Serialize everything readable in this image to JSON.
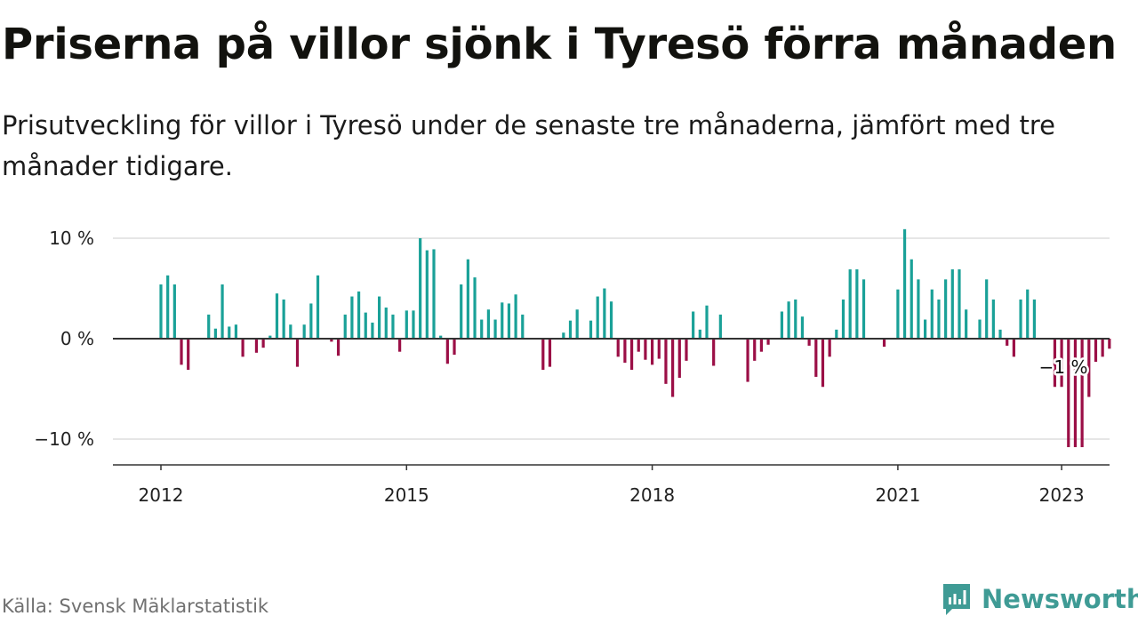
{
  "title": "Priserna på villor sjönk i Tyresö förra månaden",
  "subtitle": "Prisutveckling för villor i Tyresö under de senaste tre månaderna, jämfört med tre månader tidigare.",
  "source": "Källa: Svensk Mäklarstatistik",
  "brand": {
    "name": "Newsworthy",
    "logo_icon": "newsworthy-chart-icon",
    "color": "#3f9b95"
  },
  "colors": {
    "positive": "#1aa198",
    "negative": "#9b0f46",
    "zero_line": "#333333",
    "grid": "#dddddd"
  },
  "chart_data": {
    "type": "bar",
    "title": "Priserna på villor sjönk i Tyresö förra månaden",
    "xlabel": "",
    "ylabel": "",
    "ylim": [
      -12.5,
      13
    ],
    "y_ticks": [
      10,
      0,
      -10
    ],
    "y_tick_labels": [
      "10 %",
      "0 %",
      "−10 %"
    ],
    "x_tick_labels": [
      "2012",
      "2015",
      "2018",
      "2021",
      "2023"
    ],
    "x_ticks_decimal_year": [
      2012.0,
      2015.0,
      2018.0,
      2021.0,
      2023.0
    ],
    "grid": true,
    "legend": "none",
    "start": "2012-01",
    "frequency": "monthly",
    "annotation": {
      "text": "−1 %",
      "month": "2023-01"
    },
    "values": [
      5.4,
      6.3,
      5.4,
      -2.6,
      -3.1,
      0,
      0,
      2.4,
      1.0,
      5.4,
      1.2,
      1.4,
      -1.8,
      0,
      -1.4,
      -0.9,
      0.3,
      4.5,
      3.9,
      1.4,
      -2.8,
      1.4,
      3.5,
      6.3,
      0,
      -0.3,
      -1.7,
      2.4,
      4.2,
      4.7,
      2.6,
      1.6,
      4.2,
      3.1,
      2.4,
      -1.3,
      2.8,
      2.8,
      10.0,
      8.8,
      8.9,
      0.3,
      -2.5,
      -1.6,
      5.4,
      7.9,
      6.1,
      1.9,
      2.9,
      1.9,
      3.6,
      3.5,
      4.4,
      2.4,
      0,
      0,
      -3.1,
      -2.8,
      0,
      0.6,
      1.8,
      2.9,
      0,
      1.8,
      4.2,
      5.0,
      3.7,
      -1.8,
      -2.4,
      -3.1,
      -1.3,
      -2.1,
      -2.6,
      -2.0,
      -4.5,
      -5.8,
      -3.9,
      -2.2,
      2.7,
      0.9,
      3.3,
      -2.7,
      2.4,
      0,
      0,
      0,
      -4.3,
      -2.2,
      -1.3,
      -0.6,
      0,
      2.7,
      3.7,
      3.9,
      2.2,
      -0.7,
      -3.8,
      -4.8,
      -1.8,
      0.9,
      3.9,
      6.9,
      6.9,
      5.9,
      0,
      0,
      -0.8,
      0,
      4.9,
      10.9,
      7.9,
      5.9,
      1.9,
      4.9,
      3.9,
      5.9,
      6.9,
      6.9,
      2.9,
      0,
      1.9,
      5.9,
      3.9,
      0.9,
      -0.7,
      -1.8,
      3.9,
      4.9,
      3.9,
      0,
      0,
      -4.8,
      -4.8,
      -10.8,
      -10.8,
      -10.8,
      -5.8,
      -2.3,
      -1.8,
      -1.0
    ]
  }
}
